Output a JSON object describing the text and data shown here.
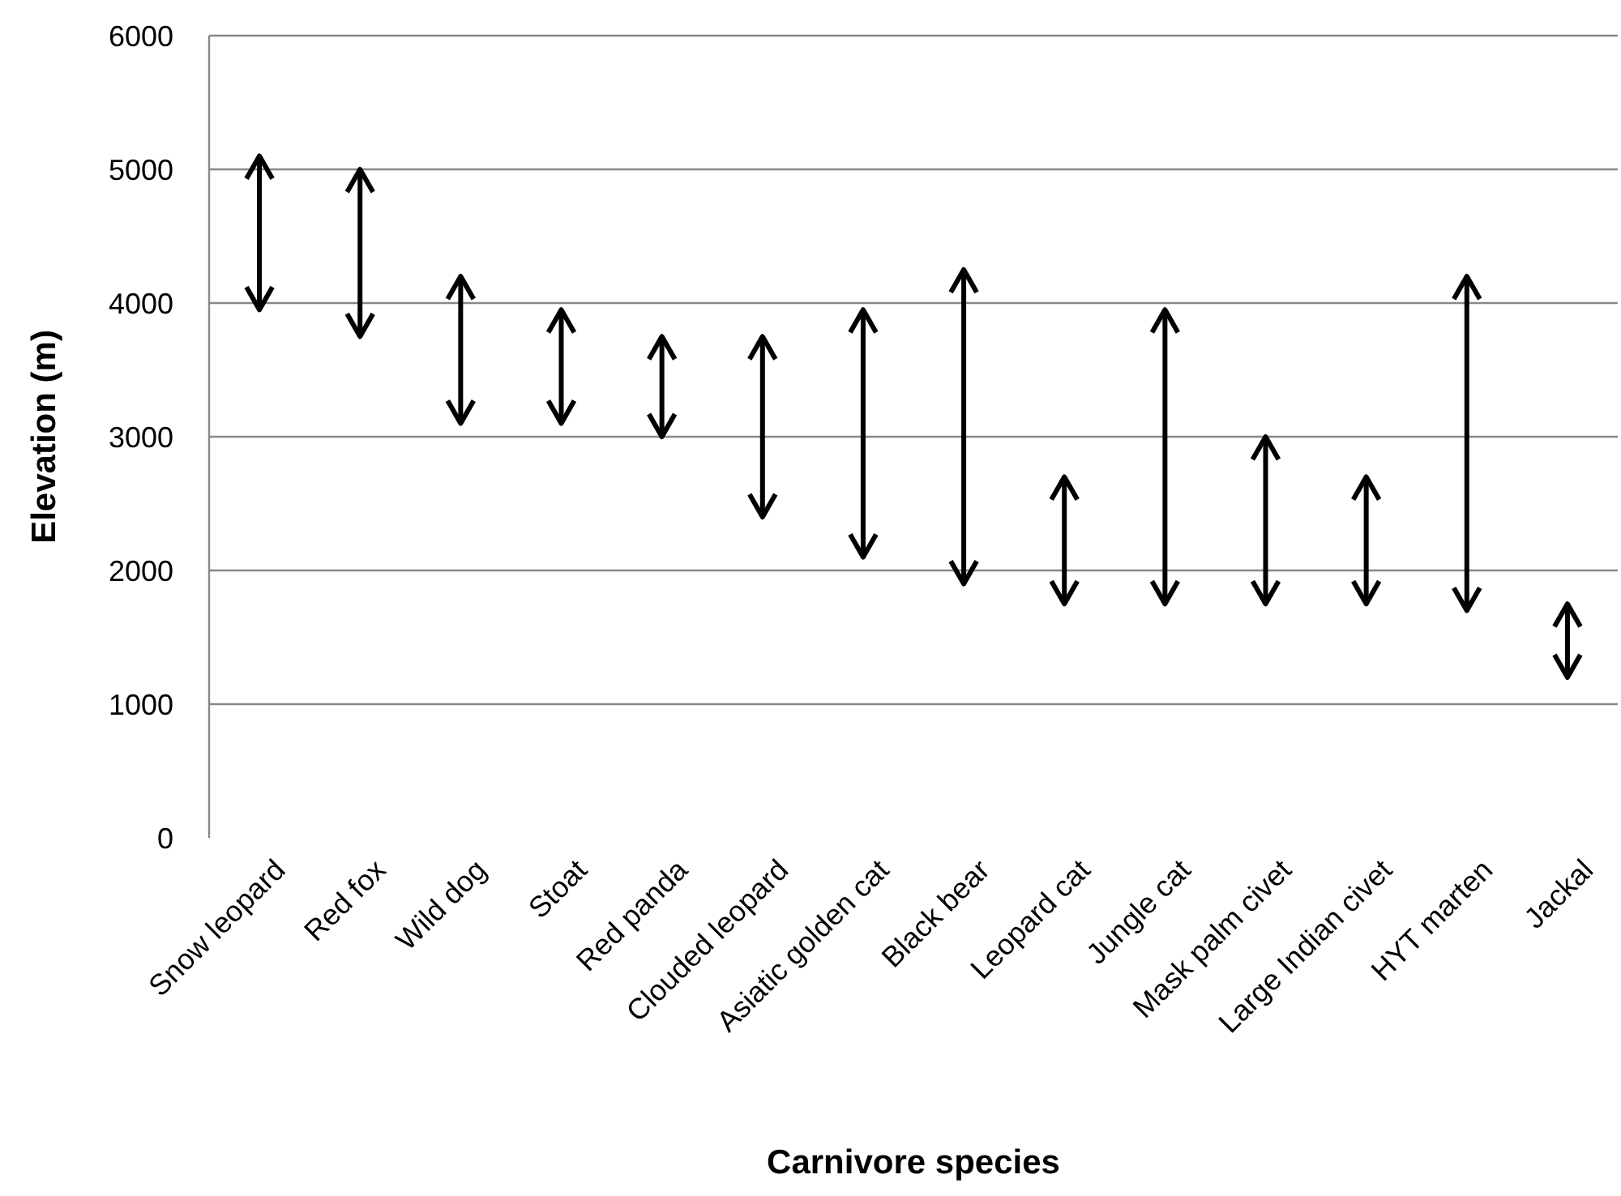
{
  "chart_data": {
    "type": "bar",
    "xlabel": "Carnivore species",
    "ylabel": "Elevation (m)",
    "categories": [
      "Snow leopard",
      "Red fox",
      "Wild dog",
      "Stoat",
      "Red panda",
      "Clouded leopard",
      "Asiatic golden cat",
      "Black bear",
      "Leopard cat",
      "Jungle cat",
      "Mask palm civet",
      "Large Indian civet",
      "HYT marten",
      "Jackal"
    ],
    "base": [
      3950,
      3750,
      3100,
      3100,
      3000,
      2400,
      2100,
      1900,
      1750,
      1750,
      1750,
      1750,
      1700,
      1200
    ],
    "values": [
      1150,
      1250,
      1100,
      850,
      750,
      1350,
      1850,
      2350,
      950,
      2200,
      1250,
      950,
      2500,
      550
    ],
    "color": "#000000",
    "ylim": [
      0,
      6000
    ],
    "yticks": [
      0,
      1000,
      2000,
      3000,
      4000,
      5000,
      6000
    ],
    "grid": "y"
  }
}
